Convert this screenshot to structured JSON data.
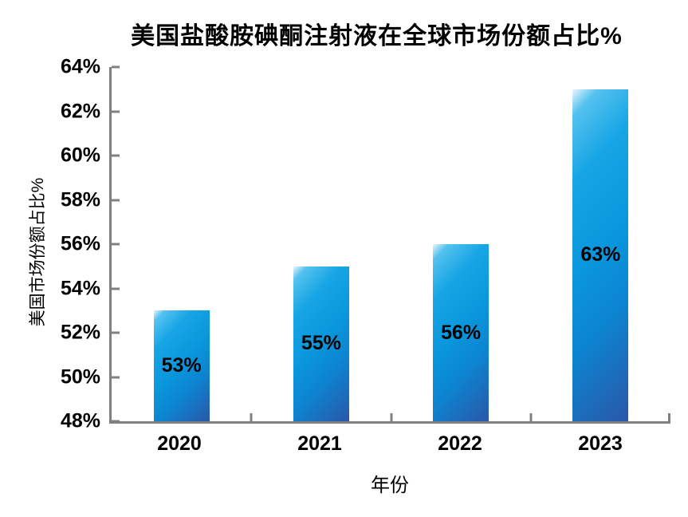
{
  "chart_data": {
    "type": "bar",
    "title": "美国盐酸胺碘酮注射液在全球市场份额占比%",
    "xlabel": "年份",
    "ylabel": "美国市场份额占比%",
    "categories": [
      "2020",
      "2021",
      "2022",
      "2023"
    ],
    "values": [
      53,
      55,
      56,
      63
    ],
    "data_labels": [
      "53%",
      "55%",
      "56%",
      "63%"
    ],
    "ylim": [
      48,
      64
    ],
    "y_tick_step": 2,
    "y_tick_labels": [
      "64%",
      "62%",
      "60%",
      "58%",
      "56%",
      "54%",
      "52%",
      "50%",
      "48%"
    ],
    "grid": false,
    "legend": false,
    "layout_hints": {
      "data_label_position": "inside-center",
      "tick_direction": "inward"
    },
    "colors": {
      "bar_gradient_stops": [
        "#e8f5fd",
        "#54c2ef",
        "#17a5e5",
        "#0a97dc",
        "#0c85d1",
        "#2a57a8"
      ],
      "axis": "#808080",
      "text": "#000000",
      "background": "#ffffff"
    }
  }
}
